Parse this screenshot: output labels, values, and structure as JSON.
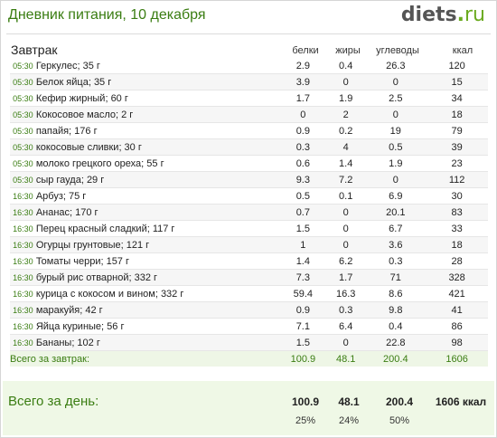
{
  "header": {
    "title": "Дневник питания, 10 декабря",
    "logo_main": "diets",
    "logo_dot": ".",
    "logo_tld": "ru"
  },
  "meal": {
    "title": "Завтрак",
    "columns": {
      "protein": "белки",
      "fat": "жиры",
      "carbs": "углеводы",
      "kcal": "ккал"
    },
    "items": [
      {
        "time": "05:30",
        "name": "Геркулес; 35 г",
        "protein": "2.9",
        "fat": "0.4",
        "carbs": "26.3",
        "kcal": "120"
      },
      {
        "time": "05:30",
        "name": "Белок яйца; 35 г",
        "protein": "3.9",
        "fat": "0",
        "carbs": "0",
        "kcal": "15"
      },
      {
        "time": "05:30",
        "name": "Кефир жирный; 60 г",
        "protein": "1.7",
        "fat": "1.9",
        "carbs": "2.5",
        "kcal": "34"
      },
      {
        "time": "05:30",
        "name": "Кокосовое масло; 2 г",
        "protein": "0",
        "fat": "2",
        "carbs": "0",
        "kcal": "18"
      },
      {
        "time": "05:30",
        "name": "папайя; 176 г",
        "protein": "0.9",
        "fat": "0.2",
        "carbs": "19",
        "kcal": "79"
      },
      {
        "time": "05:30",
        "name": "кокосовые сливки; 30 г",
        "protein": "0.3",
        "fat": "4",
        "carbs": "0.5",
        "kcal": "39"
      },
      {
        "time": "05:30",
        "name": "молоко грецкого ореха; 55 г",
        "protein": "0.6",
        "fat": "1.4",
        "carbs": "1.9",
        "kcal": "23"
      },
      {
        "time": "05:30",
        "name": "сыр гауда; 29 г",
        "protein": "9.3",
        "fat": "7.2",
        "carbs": "0",
        "kcal": "112"
      },
      {
        "time": "16:30",
        "name": "Арбуз; 75 г",
        "protein": "0.5",
        "fat": "0.1",
        "carbs": "6.9",
        "kcal": "30"
      },
      {
        "time": "16:30",
        "name": "Ананас; 170 г",
        "protein": "0.7",
        "fat": "0",
        "carbs": "20.1",
        "kcal": "83"
      },
      {
        "time": "16:30",
        "name": "Перец красный сладкий; 117 г",
        "protein": "1.5",
        "fat": "0",
        "carbs": "6.7",
        "kcal": "33"
      },
      {
        "time": "16:30",
        "name": "Огурцы грунтовые; 121 г",
        "protein": "1",
        "fat": "0",
        "carbs": "3.6",
        "kcal": "18"
      },
      {
        "time": "16:30",
        "name": "Томаты черри; 157 г",
        "protein": "1.4",
        "fat": "6.2",
        "carbs": "0.3",
        "kcal": "28"
      },
      {
        "time": "16:30",
        "name": "бурый рис отварной; 332 г",
        "protein": "7.3",
        "fat": "1.7",
        "carbs": "71",
        "kcal": "328"
      },
      {
        "time": "16:30",
        "name": "курица с кокосом и вином; 332 г",
        "protein": "59.4",
        "fat": "16.3",
        "carbs": "8.6",
        "kcal": "421"
      },
      {
        "time": "16:30",
        "name": "маракуйя; 42 г",
        "protein": "0.9",
        "fat": "0.3",
        "carbs": "9.8",
        "kcal": "41"
      },
      {
        "time": "16:30",
        "name": "Яйца куриные; 56 г",
        "protein": "7.1",
        "fat": "6.4",
        "carbs": "0.4",
        "kcal": "86"
      },
      {
        "time": "16:30",
        "name": "Бананы; 102 г",
        "protein": "1.5",
        "fat": "0",
        "carbs": "22.8",
        "kcal": "98"
      }
    ],
    "total": {
      "label": "Всего за завтрак:",
      "protein": "100.9",
      "fat": "48.1",
      "carbs": "200.4",
      "kcal": "1606"
    }
  },
  "day": {
    "label": "Всего за день:",
    "protein": "100.9",
    "fat": "48.1",
    "carbs": "200.4",
    "kcal": "1606 ккал",
    "protein_pct": "25%",
    "fat_pct": "24%",
    "carbs_pct": "50%"
  },
  "colors": {
    "accent": "#3a7d12",
    "row_alt": "#f6f6f6",
    "total_bg": "#eef6e6"
  }
}
